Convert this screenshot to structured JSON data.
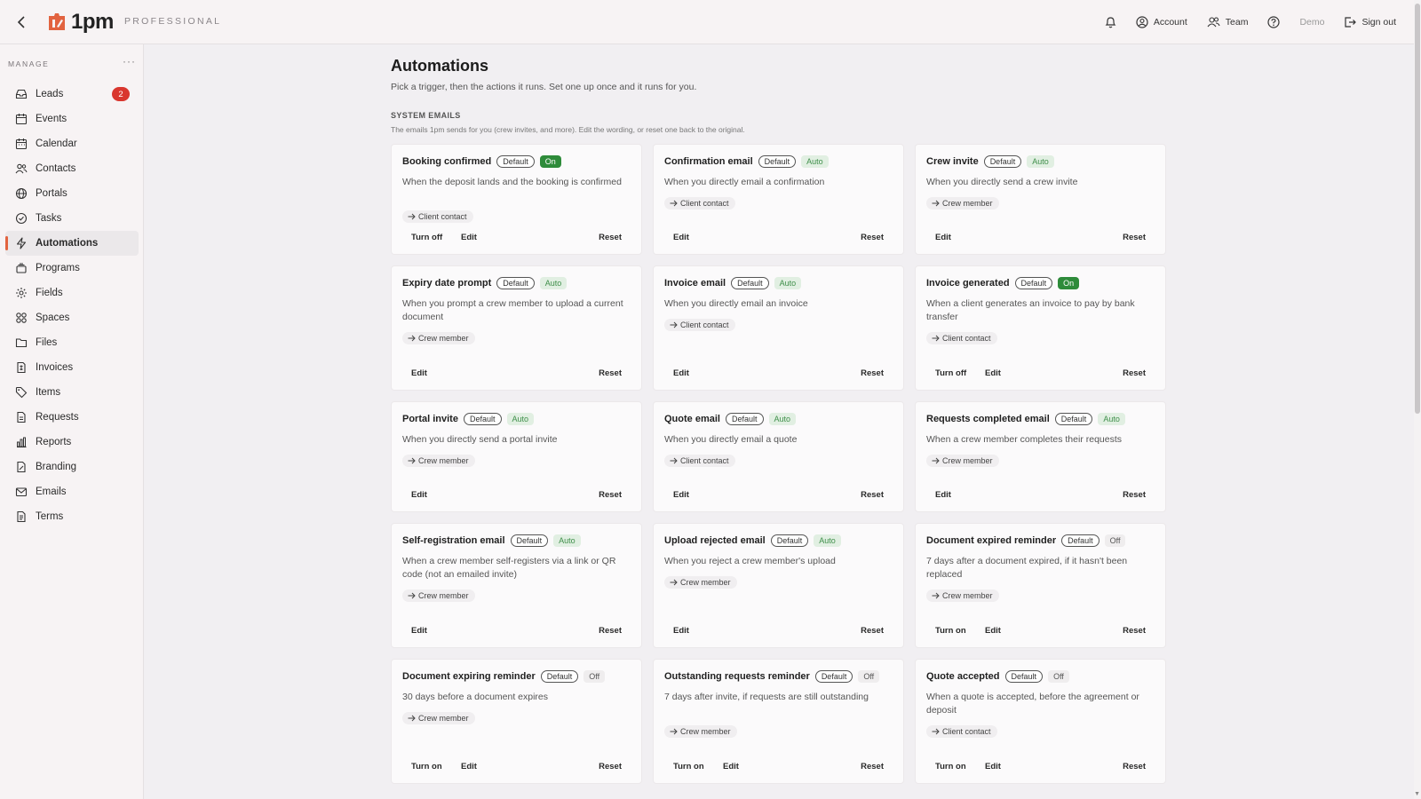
{
  "topbar": {
    "logo_text": "1pm",
    "plan": "PROFESSIONAL",
    "account": "Account",
    "team": "Team",
    "demo": "Demo",
    "sign_out": "Sign out"
  },
  "sidebar": {
    "section": "MANAGE",
    "more": "···",
    "items": [
      {
        "label": "Leads",
        "icon": "inbox-icon",
        "badge": "2"
      },
      {
        "label": "Events",
        "icon": "calendar-icon"
      },
      {
        "label": "Calendar",
        "icon": "calendar-grid-icon"
      },
      {
        "label": "Contacts",
        "icon": "contacts-icon"
      },
      {
        "label": "Portals",
        "icon": "globe-icon"
      },
      {
        "label": "Tasks",
        "icon": "check-circle-icon"
      },
      {
        "label": "Automations",
        "icon": "bolt-icon",
        "active": true
      },
      {
        "label": "Programs",
        "icon": "layers-icon"
      },
      {
        "label": "Fields",
        "icon": "gear-icon"
      },
      {
        "label": "Spaces",
        "icon": "grid-icon"
      },
      {
        "label": "Files",
        "icon": "folder-icon"
      },
      {
        "label": "Invoices",
        "icon": "invoice-icon"
      },
      {
        "label": "Items",
        "icon": "tag-icon"
      },
      {
        "label": "Requests",
        "icon": "document-icon"
      },
      {
        "label": "Reports",
        "icon": "bar-chart-icon"
      },
      {
        "label": "Branding",
        "icon": "brush-icon"
      },
      {
        "label": "Emails",
        "icon": "mail-icon"
      },
      {
        "label": "Terms",
        "icon": "file-text-icon"
      }
    ]
  },
  "main": {
    "title": "Automations",
    "subtitle": "Pick a trigger, then the actions it runs. Set one up once and it runs for you.",
    "section_title": "SYSTEM EMAILS",
    "section_subtitle": "The emails 1pm sends for you (crew invites, and more). Edit the wording, or reset one back to the original.",
    "cards": [
      {
        "title": "Booking confirmed",
        "default": "Default",
        "status": "On",
        "status_type": "on",
        "desc": "When the deposit lands and the booking is confirmed",
        "recipient": "Client contact",
        "actions": [
          "Turn off",
          "Edit"
        ],
        "reset": "Reset"
      },
      {
        "title": "Confirmation email",
        "default": "Default",
        "status": "Auto",
        "status_type": "auto",
        "desc": "When you directly email a confirmation",
        "recipient": "Client contact",
        "actions": [
          "Edit"
        ],
        "reset": "Reset"
      },
      {
        "title": "Crew invite",
        "default": "Default",
        "status": "Auto",
        "status_type": "auto",
        "desc": "When you directly send a crew invite",
        "recipient": "Crew member",
        "actions": [
          "Edit"
        ],
        "reset": "Reset"
      },
      {
        "title": "Expiry date prompt",
        "default": "Default",
        "status": "Auto",
        "status_type": "auto",
        "desc": "When you prompt a crew member to upload a current document",
        "recipient": "Crew member",
        "actions": [
          "Edit"
        ],
        "reset": "Reset"
      },
      {
        "title": "Invoice email",
        "default": "Default",
        "status": "Auto",
        "status_type": "auto",
        "desc": "When you directly email an invoice",
        "recipient": "Client contact",
        "actions": [
          "Edit"
        ],
        "reset": "Reset"
      },
      {
        "title": "Invoice generated",
        "default": "Default",
        "status": "On",
        "status_type": "on",
        "desc": "When a client generates an invoice to pay by bank transfer",
        "recipient": "Client contact",
        "actions": [
          "Turn off",
          "Edit"
        ],
        "reset": "Reset"
      },
      {
        "title": "Portal invite",
        "default": "Default",
        "status": "Auto",
        "status_type": "auto",
        "desc": "When you directly send a portal invite",
        "recipient": "Crew member",
        "actions": [
          "Edit"
        ],
        "reset": "Reset"
      },
      {
        "title": "Quote email",
        "default": "Default",
        "status": "Auto",
        "status_type": "auto",
        "desc": "When you directly email a quote",
        "recipient": "Client contact",
        "actions": [
          "Edit"
        ],
        "reset": "Reset"
      },
      {
        "title": "Requests completed email",
        "default": "Default",
        "status": "Auto",
        "status_type": "auto",
        "desc": "When a crew member completes their requests",
        "recipient": "Crew member",
        "actions": [
          "Edit"
        ],
        "reset": "Reset"
      },
      {
        "title": "Self-registration email",
        "default": "Default",
        "status": "Auto",
        "status_type": "auto",
        "desc": "When a crew member self-registers via a link or QR code (not an emailed invite)",
        "recipient": "Crew member",
        "actions": [
          "Edit"
        ],
        "reset": "Reset"
      },
      {
        "title": "Upload rejected email",
        "default": "Default",
        "status": "Auto",
        "status_type": "auto",
        "desc": "When you reject a crew member's upload",
        "recipient": "Crew member",
        "actions": [
          "Edit"
        ],
        "reset": "Reset"
      },
      {
        "title": "Document expired reminder",
        "default": "Default",
        "status": "Off",
        "status_type": "off",
        "desc": "7 days after a document expired, if it hasn't been replaced",
        "recipient": "Crew member",
        "actions": [
          "Turn on",
          "Edit"
        ],
        "reset": "Reset"
      },
      {
        "title": "Document expiring reminder",
        "default": "Default",
        "status": "Off",
        "status_type": "off",
        "desc": "30 days before a document expires",
        "recipient": "Crew member",
        "actions": [
          "Turn on",
          "Edit"
        ],
        "reset": "Reset"
      },
      {
        "title": "Outstanding requests reminder",
        "default": "Default",
        "status": "Off",
        "status_type": "off",
        "desc": "7 days after invite, if requests are still outstanding",
        "recipient": "Crew member",
        "actions": [
          "Turn on",
          "Edit"
        ],
        "reset": "Reset"
      },
      {
        "title": "Quote accepted",
        "default": "Default",
        "status": "Off",
        "status_type": "off",
        "desc": "When a quote is accepted, before the agreement or deposit",
        "recipient": "Client contact",
        "actions": [
          "Turn on",
          "Edit"
        ],
        "reset": "Reset"
      }
    ]
  }
}
